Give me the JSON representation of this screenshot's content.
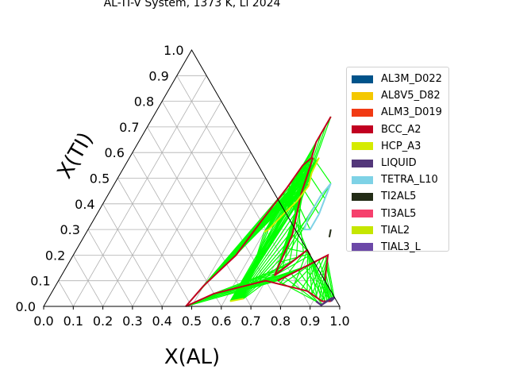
{
  "chart_data": {
    "type": "ternary_phase_diagram",
    "title": "AL-TI-V System, 1373 K, Li 2024",
    "xlabel": "X(AL)",
    "ylabel": "X(TI)",
    "xlim": [
      0.0,
      1.0
    ],
    "ylim": [
      0.0,
      1.0
    ],
    "x_ticks": [
      "0.0",
      "0.1",
      "0.2",
      "0.3",
      "0.4",
      "0.5",
      "0.6",
      "0.7",
      "0.8",
      "0.9",
      "1.0"
    ],
    "y_ticks": [
      "0.0",
      "0.1",
      "0.2",
      "0.3",
      "0.4",
      "0.5",
      "0.6",
      "0.7",
      "0.8",
      "0.9",
      "1.0"
    ],
    "grid": true,
    "legend_position": "right",
    "legend": [
      {
        "name": "AL3M_D022",
        "color": "#00538a"
      },
      {
        "name": "AL8V5_D82",
        "color": "#f4c800"
      },
      {
        "name": "ALM3_D019",
        "color": "#f13a13"
      },
      {
        "name": "BCC_A2",
        "color": "#c10020"
      },
      {
        "name": "HCP_A3",
        "color": "#d5eb00"
      },
      {
        "name": "LIQUID",
        "color": "#53377a"
      },
      {
        "name": "TETRA_L10",
        "color": "#7ed2e6"
      },
      {
        "name": "TI2AL5",
        "color": "#232c16"
      },
      {
        "name": "TI3AL5",
        "color": "#f6406d"
      },
      {
        "name": "TIAL2",
        "color": "#c5e600"
      },
      {
        "name": "TIAL3_L",
        "color": "#6c48a8"
      }
    ],
    "tie_line_color": "#00ff00",
    "boundaries": [
      {
        "phase": "BCC_A2",
        "points": [
          [
            0.48,
            0.0
          ],
          [
            0.5,
            0.08
          ],
          [
            0.55,
            0.2
          ],
          [
            0.57,
            0.34
          ],
          [
            0.59,
            0.46
          ],
          [
            0.6,
            0.55
          ],
          [
            0.615,
            0.58
          ],
          [
            0.6,
            0.64
          ],
          [
            0.6,
            0.74
          ]
        ]
      },
      {
        "phase": "BCC_A2",
        "points": [
          [
            0.48,
            0.0
          ],
          [
            0.55,
            0.05
          ],
          [
            0.7,
            0.1
          ],
          [
            0.86,
            0.06
          ],
          [
            0.93,
            0.02
          ],
          [
            0.96,
            0.02
          ]
        ]
      },
      {
        "phase": "BCC_A2",
        "points": [
          [
            0.62,
            0.58
          ],
          [
            0.65,
            0.44
          ],
          [
            0.7,
            0.28
          ],
          [
            0.72,
            0.12
          ]
        ]
      },
      {
        "phase": "BCC_A2",
        "points": [
          [
            0.74,
            0.1
          ],
          [
            0.8,
            0.15
          ],
          [
            0.86,
            0.2
          ],
          [
            0.9,
            0.1
          ]
        ]
      },
      {
        "phase": "BCC_A2",
        "points": [
          [
            0.72,
            0.12
          ],
          [
            0.78,
            0.22
          ],
          [
            0.8,
            0.2
          ]
        ]
      },
      {
        "phase": "HCP_A3",
        "points": [
          [
            0.64,
            0.58
          ],
          [
            0.645,
            0.52
          ],
          [
            0.66,
            0.47
          ],
          [
            0.65,
            0.41
          ],
          [
            0.63,
            0.36
          ],
          [
            0.61,
            0.3
          ],
          [
            0.6,
            0.29
          ]
        ]
      },
      {
        "phase": "HCP_A3",
        "points": [
          [
            0.62,
            0.02
          ],
          [
            0.66,
            0.03
          ]
        ]
      },
      {
        "phase": "TETRA_L10",
        "points": [
          [
            0.73,
            0.48
          ],
          [
            0.74,
            0.42
          ],
          [
            0.75,
            0.36
          ],
          [
            0.75,
            0.3
          ],
          [
            0.73,
            0.3
          ],
          [
            0.72,
            0.35
          ],
          [
            0.72,
            0.43
          ],
          [
            0.73,
            0.48
          ]
        ]
      },
      {
        "phase": "LIQUID",
        "points": [
          [
            0.91,
            0.02
          ],
          [
            0.935,
            0.005
          ],
          [
            0.955,
            0.03
          ],
          [
            0.965,
            0.035
          ],
          [
            0.96,
            0.02
          ]
        ]
      },
      {
        "phase": "TI2AL5",
        "points": [
          [
            0.82,
            0.3
          ],
          [
            0.83,
            0.27
          ]
        ]
      }
    ]
  }
}
